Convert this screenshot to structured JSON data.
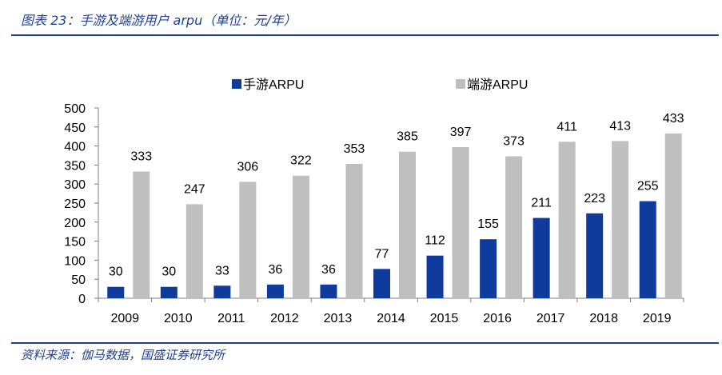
{
  "header": {
    "title": "图表 23：手游及端游用户 arpu（单位：元/年）"
  },
  "footer": {
    "source": "资料来源：伽马数据，国盛证券研究所"
  },
  "colors": {
    "mobile": "#0f3c9c",
    "pc": "#bfbfbf",
    "accent": "#1f3f8f"
  },
  "chart_data": {
    "type": "bar",
    "categories": [
      "2009",
      "2010",
      "2011",
      "2012",
      "2013",
      "2014",
      "2015",
      "2016",
      "2017",
      "2018",
      "2019"
    ],
    "series": [
      {
        "name": "手游ARPU",
        "values": [
          30,
          30,
          33,
          36,
          36,
          77,
          112,
          155,
          211,
          223,
          255
        ]
      },
      {
        "name": "端游ARPU",
        "values": [
          333,
          247,
          306,
          322,
          353,
          385,
          397,
          373,
          411,
          413,
          433
        ]
      }
    ],
    "ylim": [
      0,
      500
    ],
    "yticks": [
      0,
      50,
      100,
      150,
      200,
      250,
      300,
      350,
      400,
      450,
      500
    ],
    "grid": false,
    "legend": "top"
  }
}
